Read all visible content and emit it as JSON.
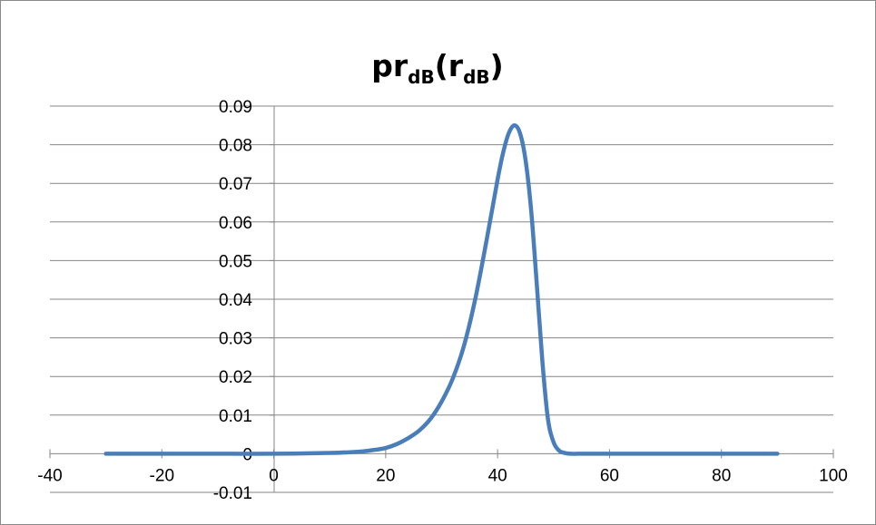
{
  "chart_data": {
    "type": "line",
    "title": {
      "parts": [
        {
          "text": "pr",
          "sub": false
        },
        {
          "text": "dB",
          "sub": true
        },
        {
          "text": "(r",
          "sub": false
        },
        {
          "text": "dB",
          "sub": true
        },
        {
          "text": ")",
          "sub": false
        }
      ]
    },
    "xlabel": "",
    "ylabel": "",
    "xlim": [
      -40,
      100
    ],
    "ylim": [
      -0.01,
      0.09
    ],
    "x_ticks": [
      -40,
      -20,
      0,
      20,
      40,
      60,
      80,
      100
    ],
    "x_tick_labels": [
      "-40",
      "-20",
      "0",
      "20",
      "40",
      "60",
      "80",
      "100"
    ],
    "y_ticks": [
      -0.01,
      0,
      0.01,
      0.02,
      0.03,
      0.04,
      0.05,
      0.06,
      0.07,
      0.08,
      0.09
    ],
    "y_tick_labels": [
      "-0.01",
      "0",
      "0.01",
      "0.02",
      "0.03",
      "0.04",
      "0.05",
      "0.06",
      "0.07",
      "0.08",
      "0.09"
    ],
    "grid": {
      "horizontal": true,
      "vertical": false
    },
    "legend": "none",
    "line_color": "#4a7ebb",
    "series": [
      {
        "x": [
          -30,
          -20,
          -10,
          0,
          10,
          15,
          18,
          20,
          22,
          24,
          26,
          28,
          30,
          32,
          34,
          36,
          38,
          40,
          41,
          42,
          43,
          44,
          45,
          46,
          47,
          48,
          49,
          50,
          51,
          52,
          53,
          55,
          60,
          70,
          80,
          90
        ],
        "values": [
          0,
          0,
          0,
          0,
          0.0002,
          0.0005,
          0.001,
          0.0015,
          0.0025,
          0.004,
          0.006,
          0.009,
          0.0135,
          0.0195,
          0.028,
          0.04,
          0.055,
          0.071,
          0.078,
          0.083,
          0.085,
          0.083,
          0.076,
          0.063,
          0.044,
          0.024,
          0.009,
          0.003,
          0.0008,
          0.0002,
          0,
          0,
          0,
          0,
          0,
          0
        ]
      }
    ]
  }
}
